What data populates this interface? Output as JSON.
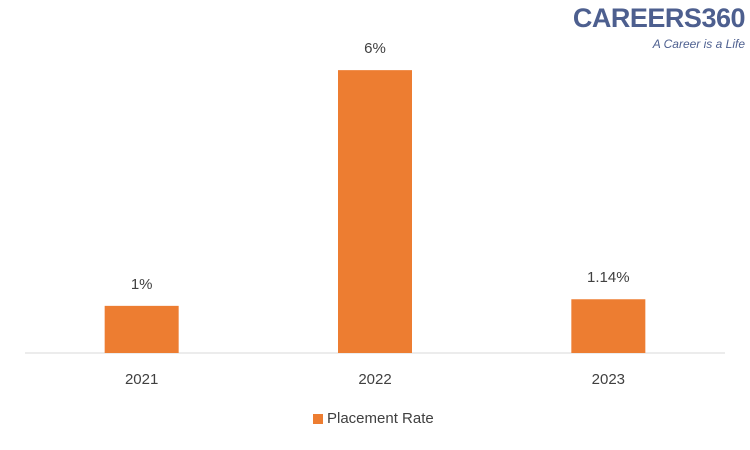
{
  "logo": {
    "name": "CAREERS360",
    "tagline": "A Career is a Life"
  },
  "chart_data": {
    "type": "bar",
    "categories": [
      "2021",
      "2022",
      "2023"
    ],
    "series": [
      {
        "name": "Placement Rate",
        "color": "#ed7d31",
        "values": [
          1,
          6,
          1.14
        ],
        "value_labels": [
          "1%",
          "6%",
          "1.14%"
        ]
      }
    ],
    "ylim": [
      0,
      7
    ],
    "legend": "bottom"
  }
}
